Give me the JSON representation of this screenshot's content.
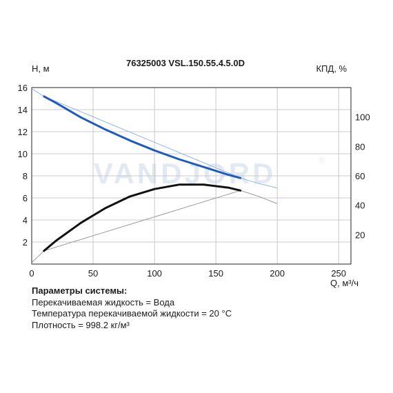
{
  "chart_data": {
    "type": "line",
    "title": "76325003 VSL.150.55.4.5.0D",
    "ylabel_left": "H, м",
    "ylabel_right": "КПД, %",
    "xlabel": "Q, м³/ч",
    "watermark": "VANDJORD",
    "xlim": [
      0,
      260
    ],
    "ylim_left": [
      0,
      16
    ],
    "ylim_right": [
      0,
      120
    ],
    "x_ticks": [
      0,
      50,
      100,
      150,
      200,
      250
    ],
    "y_ticks_left": [
      2,
      4,
      6,
      8,
      10,
      12,
      14,
      16
    ],
    "y_ticks_right": [
      20,
      40,
      60,
      80,
      100
    ],
    "grid": true,
    "series": [
      {
        "axis": "left",
        "color": "#1f5bbf",
        "x": [
          10,
          20,
          40,
          60,
          80,
          100,
          120,
          140,
          160,
          170
        ],
        "y": [
          15.2,
          14.6,
          13.3,
          12.2,
          11.2,
          10.3,
          9.5,
          8.8,
          8.1,
          7.8
        ]
      },
      {
        "axis": "right",
        "color": "#111111",
        "x": [
          10,
          20,
          40,
          60,
          80,
          100,
          120,
          140,
          160,
          170
        ],
        "y": [
          9,
          16,
          28,
          38,
          46,
          51,
          54,
          54,
          52,
          50
        ]
      }
    ],
    "extrapolated": [
      {
        "axis": "left",
        "color": "#8fb4ea",
        "x": [
          0,
          10,
          170,
          185,
          200
        ],
        "y": [
          15.9,
          15.2,
          7.8,
          7.3,
          6.9
        ]
      },
      {
        "axis": "right",
        "color": "#9a9a9a",
        "x": [
          0,
          10,
          170,
          185,
          200
        ],
        "y": [
          1,
          9,
          50,
          46,
          41
        ]
      }
    ]
  },
  "params": {
    "title": "Параметры системы:",
    "lines": [
      "Перекачиваемая жидкость = Вода",
      "Температура перекачиваемой жидкости = 20 °C",
      "Плотность = 998.2 кг/м³"
    ]
  }
}
